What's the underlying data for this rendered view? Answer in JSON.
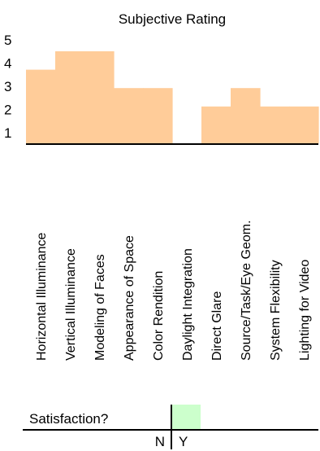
{
  "chart_data": {
    "type": "bar",
    "title": "Subjective Rating",
    "categories": [
      "Horizontal Illuminance",
      "Vertical Illuminance",
      "Modeling of Faces",
      "Appearance of Space",
      "Color Rendition",
      "Daylight Integration",
      "Direct Glare",
      "Source/Task/Eye Geom.",
      "System Flexibility",
      "Lighting for Video"
    ],
    "values": [
      4,
      5,
      5,
      3,
      3,
      0,
      2,
      3,
      2,
      2
    ],
    "y_tick_labels": [
      "5",
      "4",
      "3",
      "2",
      "1"
    ],
    "ylim": [
      0,
      5
    ],
    "bar_color": "#ffcc99",
    "grid": false
  },
  "satisfaction": {
    "label": "Satisfaction?",
    "no_label": "N",
    "yes_label": "Y",
    "value": "Y",
    "yes_color": "#ccffcc"
  }
}
